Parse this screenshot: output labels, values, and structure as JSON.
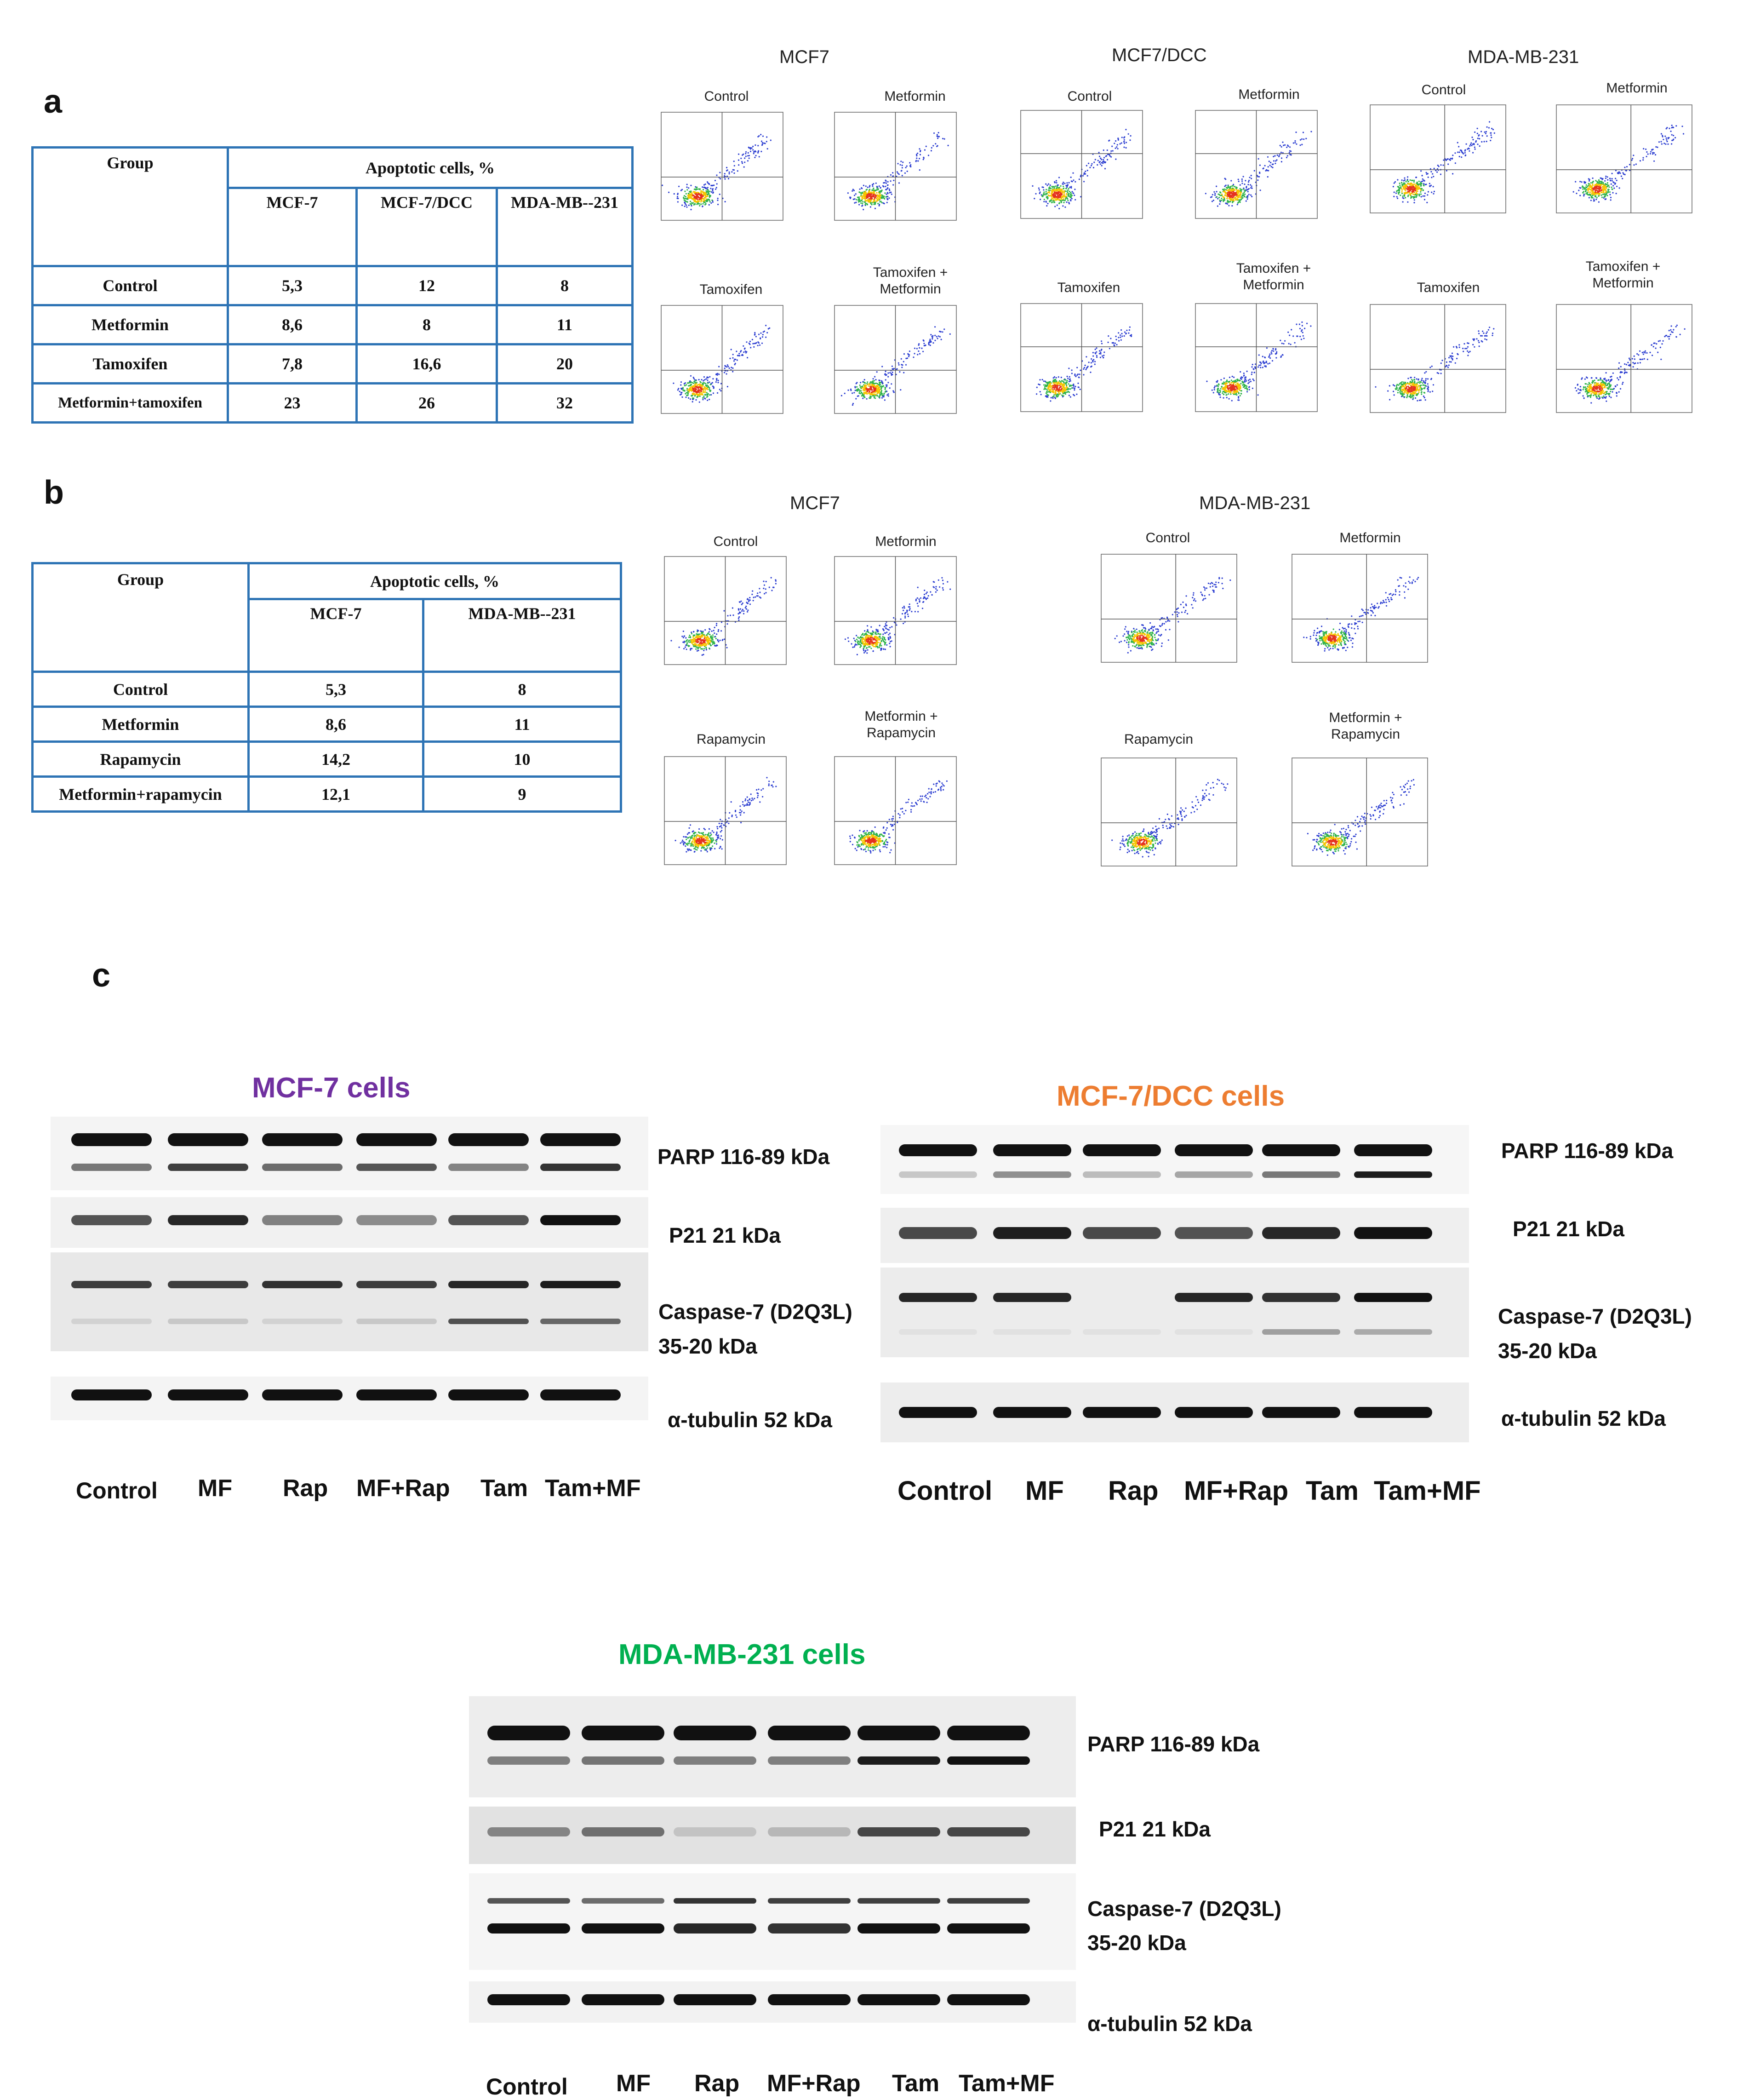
{
  "panel_a": {
    "letter": "a",
    "table": {
      "group_header": "Group",
      "apoptotic_header": "Apoptotic cells, %",
      "columns": [
        "MCF-7",
        "MCF-7/DCC",
        "MDA-MB--231"
      ],
      "rows": [
        {
          "group": "Control",
          "values": [
            "5,3",
            "12",
            "8"
          ]
        },
        {
          "group": "Metformin",
          "values": [
            "8,6",
            "8",
            "11"
          ]
        },
        {
          "group": "Tamoxifen",
          "values": [
            "7,8",
            "16,6",
            "20"
          ]
        },
        {
          "group": "Metformin+tamoxifen",
          "values": [
            "23",
            "26",
            "32"
          ]
        }
      ]
    },
    "cell_titles": [
      "MCF7",
      "MCF7/DCC",
      "MDA-MB-231"
    ],
    "plot_labels": [
      "Control",
      "Metformin",
      "Tamoxifen",
      "Tamoxifen + Metformin"
    ]
  },
  "panel_b": {
    "letter": "b",
    "table": {
      "group_header": "Group",
      "apoptotic_header": "Apoptotic cells, %",
      "columns": [
        "MCF-7",
        "MDA-MB--231"
      ],
      "rows": [
        {
          "group": "Control",
          "values": [
            "5,3",
            "8"
          ]
        },
        {
          "group": "Metformin",
          "values": [
            "8,6",
            "11"
          ]
        },
        {
          "group": "Rapamycin",
          "values": [
            "14,2",
            "10"
          ]
        },
        {
          "group": "Metformin+rapamycin",
          "values": [
            "12,1",
            "9"
          ]
        }
      ]
    },
    "cell_titles": [
      "MCF7",
      "MDA-MB-231"
    ],
    "plot_labels": [
      "Control",
      "Metformin",
      "Rapamycin",
      "Metformin + Rapamycin"
    ]
  },
  "panel_c": {
    "letter": "c",
    "blots": [
      {
        "title": "MCF-7 cells",
        "color": "#7030a0"
      },
      {
        "title": "MCF-7/DCC cells",
        "color": "#ed7d31"
      },
      {
        "title": "MDA-MB-231 cells",
        "color": "#00b050"
      }
    ],
    "markers": [
      "PARP 116-89 kDa",
      "P21 21 kDa",
      "Caspase-7 (D2Q3L)",
      "35-20  kDa",
      "α-tubulin 52 kDa"
    ],
    "lanes": [
      "Control",
      "MF",
      "Rap",
      "MF+Rap",
      "Tam",
      "Tam+MF"
    ]
  }
}
